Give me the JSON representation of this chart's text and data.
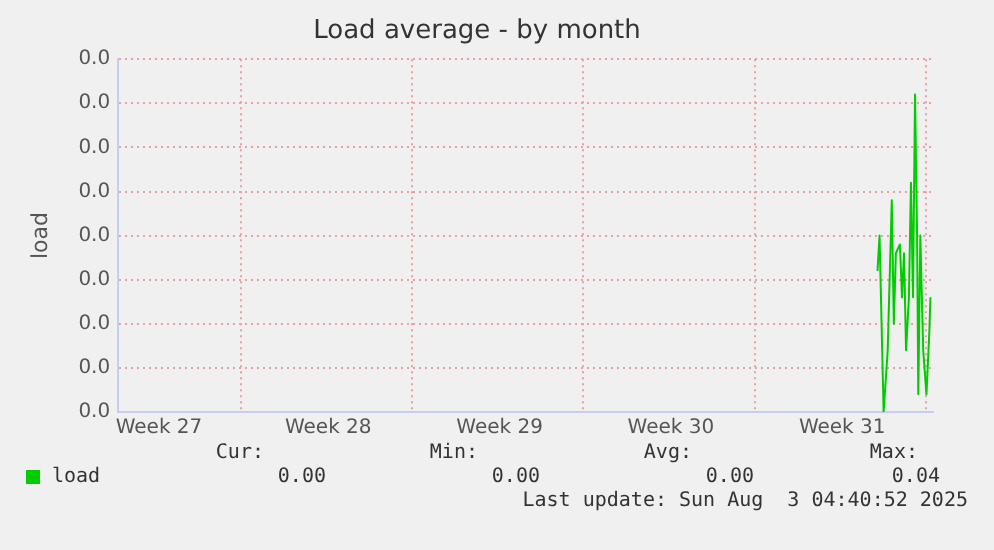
{
  "chart_data": {
    "type": "line",
    "title": "Load average - by month",
    "ylabel": "load",
    "x": [
      "2025-08-01T00:36",
      "2025-08-01T02:36",
      "2025-08-01T06:36",
      "2025-08-01T10:36",
      "2025-08-01T14:36",
      "2025-08-01T16:36",
      "2025-08-01T18:36",
      "2025-08-01T22:36",
      "2025-08-02T00:36",
      "2025-08-02T02:36",
      "2025-08-02T04:36",
      "2025-08-02T07:24",
      "2025-08-02T09:24",
      "2025-08-02T11:24",
      "2025-08-02T13:24",
      "2025-08-02T15:24",
      "2025-08-02T16:36",
      "2025-08-02T18:36",
      "2025-08-02T21:24",
      "2025-08-03T00:36",
      "2025-08-03T03:24",
      "2025-08-03T04:30"
    ],
    "series": [
      {
        "name": "load",
        "color": "#00cc00",
        "values": [
          0.016,
          0.02,
          0.0,
          0.007,
          0.024,
          0.01,
          0.018,
          0.019,
          0.013,
          0.018,
          0.007,
          0.013,
          0.026,
          0.013,
          0.036,
          0.02,
          0.002,
          0.02,
          0.007,
          0.002,
          0.009,
          0.013
        ]
      }
    ],
    "xlim": [
      "2025-07-01T00:00",
      "2025-08-03T08:00"
    ],
    "xticks": [
      {
        "value": "2025-07-02T16:00",
        "label": "Week 27"
      },
      {
        "value": "2025-07-06T00:00",
        "label": null
      },
      {
        "value": "2025-07-09T14:00",
        "label": "Week 28"
      },
      {
        "value": "2025-07-13T00:00",
        "label": null
      },
      {
        "value": "2025-07-16T14:00",
        "label": "Week 29"
      },
      {
        "value": "2025-07-20T00:00",
        "label": null
      },
      {
        "value": "2025-07-23T14:00",
        "label": "Week 30"
      },
      {
        "value": "2025-07-27T00:00",
        "label": null
      },
      {
        "value": "2025-07-30T14:00",
        "label": "Week 31"
      },
      {
        "value": "2025-08-03T00:00",
        "label": null
      }
    ],
    "ylim": [
      0,
      0.04
    ],
    "yticks": [
      {
        "value": 0,
        "label": "0.0"
      },
      {
        "value": 0.005,
        "label": "0.0"
      },
      {
        "value": 0.01,
        "label": "0.0"
      },
      {
        "value": 0.015,
        "label": "0.0"
      },
      {
        "value": 0.02,
        "label": "0.0"
      },
      {
        "value": 0.025,
        "label": "0.0"
      },
      {
        "value": 0.03,
        "label": "0.0"
      },
      {
        "value": 0.035,
        "label": "0.0"
      },
      {
        "value": 0.04,
        "label": "0.0"
      }
    ],
    "grid": true,
    "legend": "bottom left",
    "marker": "none",
    "line_style": "solid",
    "annotations": [
      "Cur:",
      "Min:",
      "Avg:",
      "Max:",
      "0.00",
      "0.00",
      "0.00",
      "0.04",
      "Last update: Sun Aug  3 04:40:52 2025"
    ]
  }
}
